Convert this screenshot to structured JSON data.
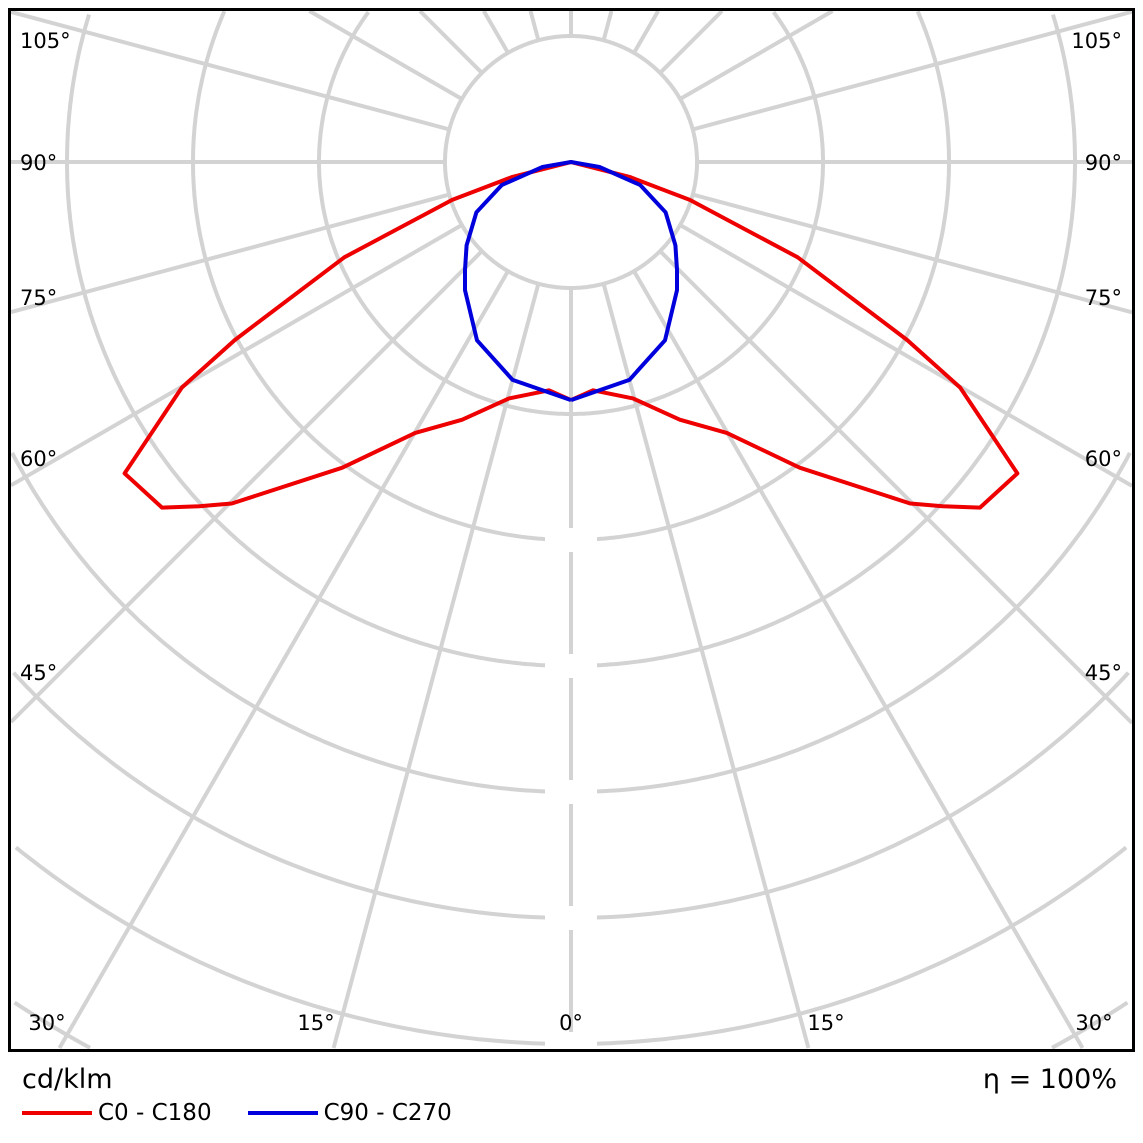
{
  "chart_data": {
    "type": "polar",
    "unit_label": "cd/klm",
    "efficiency_label": "η = 100%",
    "angle_labels_left": [
      "105°",
      "90°",
      "75°",
      "60°",
      "45°"
    ],
    "angle_labels_right": [
      "105°",
      "90°",
      "75°",
      "60°",
      "45°"
    ],
    "angle_labels_bottom": [
      "30°",
      "15°",
      "0°",
      "15°",
      "30°"
    ],
    "angular_grid_step_deg": 15,
    "radial_scale_labels": "none printed",
    "grid": true,
    "legend_position": "bottom-left",
    "series": [
      {
        "name": "C0 - C180",
        "color": "#ee0000",
        "symmetric": true,
        "points": [
          {
            "angle": 0,
            "r": 1.89
          },
          {
            "angle": 5.5,
            "r": 1.82
          },
          {
            "angle": 14.7,
            "r": 1.94
          },
          {
            "angle": 22.9,
            "r": 2.22
          },
          {
            "angle": 29.9,
            "r": 2.48
          },
          {
            "angle": 36.8,
            "r": 3.03
          },
          {
            "angle": 44.8,
            "r": 3.82
          },
          {
            "angle": 47.2,
            "r": 4.02
          },
          {
            "angle": 49.8,
            "r": 4.25
          },
          {
            "angle": 55.1,
            "r": 4.32
          },
          {
            "angle": 59.9,
            "r": 3.57
          },
          {
            "angle": 62.1,
            "r": 3.02
          },
          {
            "angle": 67.2,
            "r": 1.95
          },
          {
            "angle": 72.3,
            "r": 0.99
          },
          {
            "angle": 75.7,
            "r": 0.48
          },
          {
            "angle": 90,
            "r": 0
          }
        ]
      },
      {
        "name": "C90 - C270",
        "color": "#0000dd",
        "symmetric": true,
        "points": [
          {
            "angle": 0,
            "r": 1.89
          },
          {
            "angle": 15,
            "r": 1.79
          },
          {
            "angle": 27.8,
            "r": 1.6
          },
          {
            "angle": 39.6,
            "r": 1.32
          },
          {
            "angle": 44.5,
            "r": 1.2
          },
          {
            "angle": 51.4,
            "r": 1.06
          },
          {
            "angle": 62,
            "r": 0.85
          },
          {
            "angle": 71.6,
            "r": 0.58
          },
          {
            "angle": 80,
            "r": 0.23
          },
          {
            "angle": 90,
            "r": 0
          }
        ]
      }
    ]
  }
}
